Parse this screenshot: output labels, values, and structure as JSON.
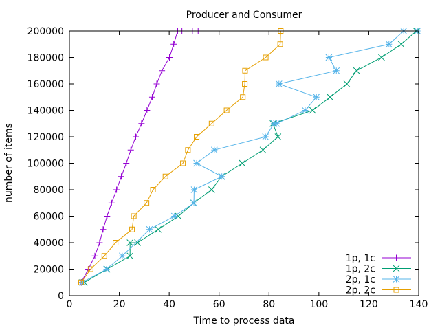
{
  "chart_data": {
    "type": "line",
    "title": "Producer and Consumer",
    "xlabel": "Time to process data",
    "ylabel": "number of items",
    "xlim": [
      0,
      140
    ],
    "ylim": [
      0,
      200000
    ],
    "xticks": [
      0,
      20,
      40,
      60,
      80,
      100,
      120,
      140
    ],
    "yticks": [
      0,
      20000,
      40000,
      60000,
      80000,
      100000,
      120000,
      140000,
      160000,
      180000,
      200000
    ],
    "grid": false,
    "legend_position": "bottom-right",
    "series": [
      {
        "name": "1p, 1c",
        "color": "#9400d3",
        "marker": "plus",
        "x": [
          4.7,
          7.6,
          10.2,
          12.1,
          13.5,
          15.1,
          16.9,
          18.9,
          20.8,
          22.8,
          24.6,
          26.6,
          28.9,
          31.1,
          33.2,
          35.0,
          37.1,
          40.1,
          41.8,
          43.4,
          45.1,
          49.3,
          51.6
        ],
        "y": [
          10000,
          20000,
          30000,
          40000,
          50000,
          60000,
          70000,
          80000,
          90000,
          100000,
          110000,
          120000,
          130000,
          140000,
          150000,
          160000,
          170000,
          180000,
          190000,
          200000,
          200000,
          200000,
          200000
        ]
      },
      {
        "name": "1p, 2c",
        "color": "#009e73",
        "marker": "cross",
        "x": [
          6.0,
          15.1,
          24.3,
          24.3,
          27.3,
          35.6,
          43.7,
          49.8,
          57.0,
          61.0,
          69.3,
          77.6,
          83.6,
          81.6,
          97.5,
          104.5,
          111.2,
          115.1,
          125.1,
          133.0,
          139.1
        ],
        "y": [
          10000,
          20000,
          30000,
          40000,
          40000,
          50000,
          60000,
          70000,
          80000,
          90000,
          100000,
          110000,
          120000,
          130000,
          140000,
          150000,
          160000,
          170000,
          180000,
          190000,
          200000
        ]
      },
      {
        "name": "2p, 1c",
        "color": "#56b4e9",
        "marker": "star",
        "x": [
          5.1,
          14.9,
          21.2,
          32.1,
          42.1,
          49.9,
          50.0,
          61.1,
          51.0,
          58.1,
          78.6,
          82.0,
          83.0,
          94.5,
          99.0,
          84.0,
          107.0,
          104.0,
          128.1,
          134.0,
          139.5
        ],
        "y": [
          10000,
          20000,
          30000,
          50000,
          60000,
          70000,
          80000,
          90000,
          100000,
          110000,
          120000,
          130000,
          130000,
          140000,
          150000,
          160000,
          170000,
          180000,
          190000,
          200000,
          200000
        ]
      },
      {
        "name": "2p, 2c",
        "color": "#e69f00",
        "marker": "square",
        "x": [
          4.7,
          8.5,
          14.0,
          18.5,
          25.1,
          25.8,
          30.9,
          33.5,
          38.5,
          45.5,
          47.5,
          51.0,
          57.0,
          63.0,
          69.5,
          70.3,
          70.4,
          78.7,
          84.5,
          84.7
        ],
        "y": [
          10000,
          20000,
          30000,
          40000,
          50000,
          60000,
          70000,
          80000,
          90000,
          100000,
          110000,
          120000,
          130000,
          140000,
          150000,
          160000,
          170000,
          180000,
          190000,
          200000
        ]
      }
    ]
  }
}
